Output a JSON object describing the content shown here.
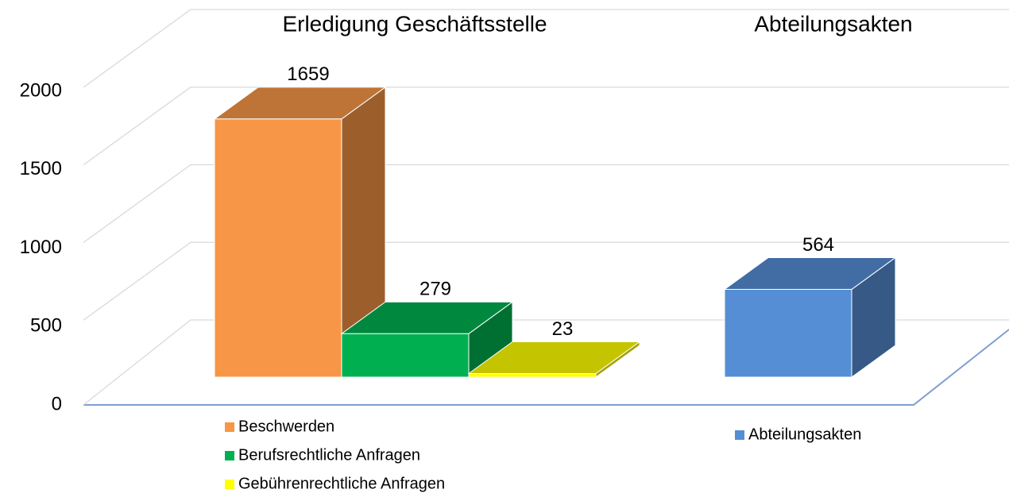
{
  "chart_data": {
    "type": "bar3d",
    "categories": [
      "Erledigung Geschäftsstelle",
      "Abteilungsakten"
    ],
    "series": [
      {
        "name": "Beschwerden",
        "color": "#f79646",
        "values": [
          1659,
          null
        ]
      },
      {
        "name": "Berufsrechtliche Anfragen",
        "color": "#00b050",
        "values": [
          279,
          null
        ]
      },
      {
        "name": "Gebührenrechtliche Anfragen",
        "color": "#ffff00",
        "values": [
          23,
          null
        ]
      },
      {
        "name": "Abteilungsakten",
        "color": "#558ed5",
        "values": [
          null,
          564
        ]
      }
    ],
    "ylim": [
      0,
      2000
    ],
    "yticks": [
      0,
      500,
      1000,
      1500,
      2000
    ],
    "grid": true
  }
}
